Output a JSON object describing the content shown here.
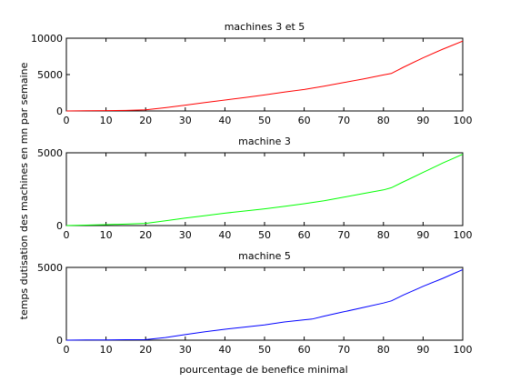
{
  "figure": {
    "ylabel": "temps dutisation des machines en mn par semaine",
    "xlabel": "pourcentage de benefice minimal"
  },
  "chart_data": [
    {
      "type": "line",
      "title": "machines 3 et 5",
      "xlim": [
        0,
        100
      ],
      "ylim": [
        0,
        10000
      ],
      "xticks": [
        "0",
        "10",
        "20",
        "30",
        "40",
        "50",
        "60",
        "70",
        "80",
        "90",
        "100"
      ],
      "yticks": [
        "0",
        "5000",
        "10000"
      ],
      "grid": false,
      "series": [
        {
          "color": "#ff0000",
          "x": [
            0,
            5,
            10,
            15,
            20,
            25,
            30,
            35,
            40,
            45,
            50,
            55,
            60,
            65,
            70,
            75,
            80,
            82,
            85,
            90,
            95,
            100
          ],
          "y": [
            0,
            20,
            50,
            80,
            150,
            450,
            800,
            1150,
            1500,
            1850,
            2200,
            2600,
            2950,
            3400,
            3900,
            4400,
            4950,
            5150,
            6000,
            7300,
            8500,
            9600
          ]
        }
      ]
    },
    {
      "type": "line",
      "title": "machine 3",
      "xlim": [
        0,
        100
      ],
      "ylim": [
        0,
        5000
      ],
      "xticks": [
        "0",
        "10",
        "20",
        "30",
        "40",
        "50",
        "60",
        "70",
        "80",
        "90",
        "100"
      ],
      "yticks": [
        "0",
        "5000"
      ],
      "grid": false,
      "series": [
        {
          "color": "#00ff00",
          "x": [
            0,
            5,
            10,
            15,
            20,
            25,
            30,
            35,
            40,
            45,
            50,
            55,
            60,
            65,
            70,
            75,
            80,
            82,
            85,
            90,
            95,
            100
          ],
          "y": [
            0,
            30,
            60,
            100,
            150,
            330,
            520,
            680,
            850,
            1000,
            1150,
            1320,
            1500,
            1700,
            1950,
            2200,
            2450,
            2600,
            3000,
            3650,
            4300,
            4900
          ]
        }
      ]
    },
    {
      "type": "line",
      "title": "machine 5",
      "xlim": [
        0,
        100
      ],
      "ylim": [
        0,
        5000
      ],
      "xticks": [
        "0",
        "10",
        "20",
        "30",
        "40",
        "50",
        "60",
        "70",
        "80",
        "90",
        "100"
      ],
      "yticks": [
        "0",
        "5000"
      ],
      "grid": false,
      "series": [
        {
          "color": "#0000ff",
          "x": [
            0,
            5,
            10,
            15,
            20,
            25,
            30,
            35,
            40,
            45,
            50,
            55,
            60,
            62,
            65,
            70,
            75,
            80,
            82,
            85,
            90,
            95,
            100
          ],
          "y": [
            0,
            10,
            20,
            30,
            40,
            180,
            380,
            580,
            750,
            900,
            1050,
            1250,
            1400,
            1450,
            1650,
            1950,
            2250,
            2550,
            2700,
            3100,
            3700,
            4250,
            4850
          ]
        }
      ]
    }
  ]
}
